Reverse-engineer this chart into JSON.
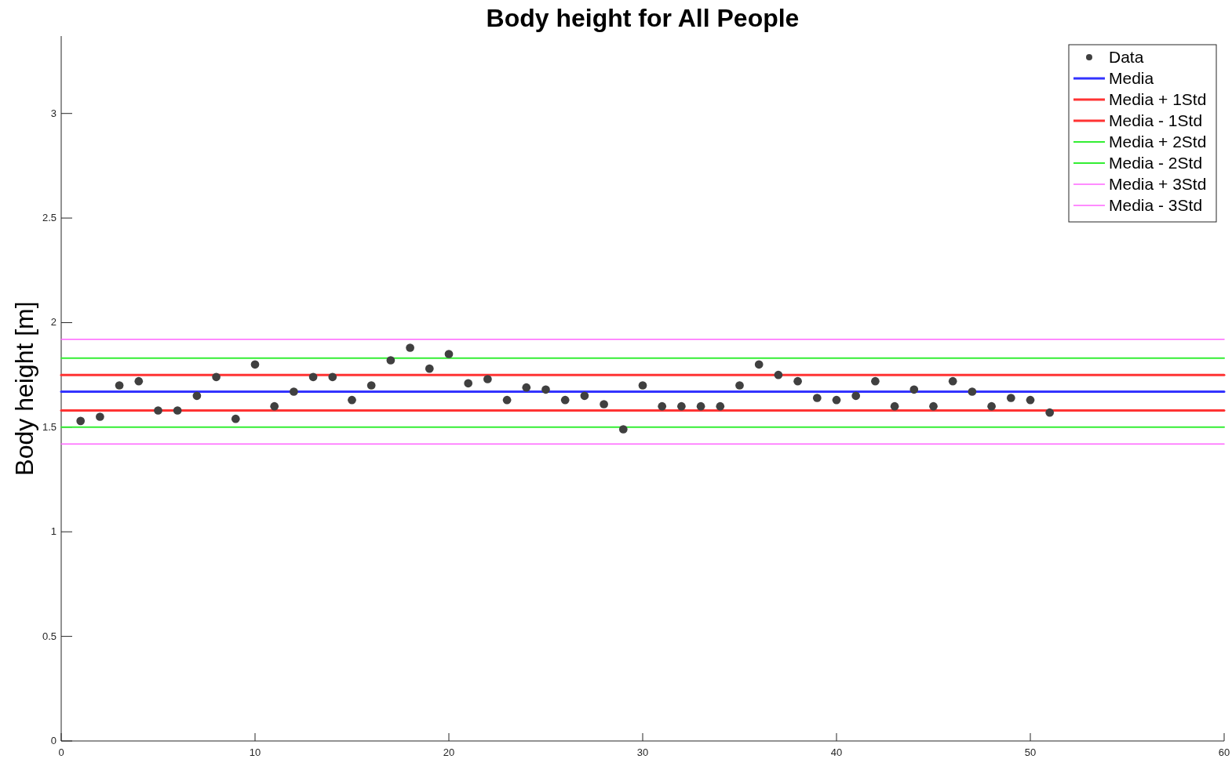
{
  "chart_data": {
    "type": "scatter",
    "title": "Body height for All People",
    "ylabel": "Body height [m]",
    "xlim": [
      0,
      60
    ],
    "ylim": [
      0,
      3.37
    ],
    "xticks": [
      0,
      10,
      20,
      30,
      40,
      50,
      60
    ],
    "yticks": [
      0,
      0.5,
      1,
      1.5,
      2,
      2.5,
      3
    ],
    "grid": false,
    "legend": "top right",
    "series": [
      {
        "name": "Data",
        "marker": "circle",
        "color": "#404040",
        "x": [
          1,
          2,
          3,
          4,
          5,
          6,
          7,
          8,
          9,
          10,
          11,
          12,
          13,
          14,
          15,
          16,
          17,
          18,
          19,
          20,
          21,
          22,
          23,
          24,
          25,
          26,
          27,
          28,
          29,
          30,
          31,
          32,
          33,
          34,
          35,
          36,
          37,
          38,
          39,
          40,
          41,
          42,
          43,
          44,
          45,
          46,
          47,
          48,
          49,
          50,
          51
        ],
        "values": [
          1.53,
          1.55,
          1.7,
          1.72,
          1.58,
          1.58,
          1.65,
          1.74,
          1.54,
          1.8,
          1.6,
          1.67,
          1.74,
          1.74,
          1.63,
          1.7,
          1.82,
          1.88,
          1.78,
          1.85,
          1.71,
          1.73,
          1.63,
          1.69,
          1.68,
          1.63,
          1.65,
          1.61,
          1.49,
          1.7,
          1.6,
          1.6,
          1.6,
          1.6,
          1.7,
          1.8,
          1.75,
          1.72,
          1.64,
          1.63,
          1.65,
          1.72,
          1.6,
          1.68,
          1.6,
          1.72,
          1.67,
          1.6,
          1.64,
          1.63,
          1.57
        ]
      },
      {
        "name": "Media",
        "type": "line",
        "color": "#3333ff",
        "x": [
          0,
          60
        ],
        "values": [
          1.67,
          1.67
        ]
      },
      {
        "name": "Media + 1Std",
        "type": "line",
        "color": "#ff3333",
        "x": [
          0,
          60
        ],
        "values": [
          1.75,
          1.75
        ]
      },
      {
        "name": "Media - 1Std",
        "type": "line",
        "color": "#ff3333",
        "x": [
          0,
          60
        ],
        "values": [
          1.58,
          1.58
        ]
      },
      {
        "name": "Media + 2Std",
        "type": "line",
        "color": "#33ee33",
        "x": [
          0,
          60
        ],
        "values": [
          1.83,
          1.83
        ]
      },
      {
        "name": "Media - 2Std",
        "type": "line",
        "color": "#33ee33",
        "x": [
          0,
          60
        ],
        "values": [
          1.5,
          1.5
        ]
      },
      {
        "name": "Media + 3Std",
        "type": "line",
        "color": "#ff66ff",
        "x": [
          0,
          60
        ],
        "values": [
          1.92,
          1.92
        ]
      },
      {
        "name": "Media - 3Std",
        "type": "line",
        "color": "#ff66ff",
        "x": [
          0,
          60
        ],
        "values": [
          1.42,
          1.42
        ]
      }
    ]
  }
}
